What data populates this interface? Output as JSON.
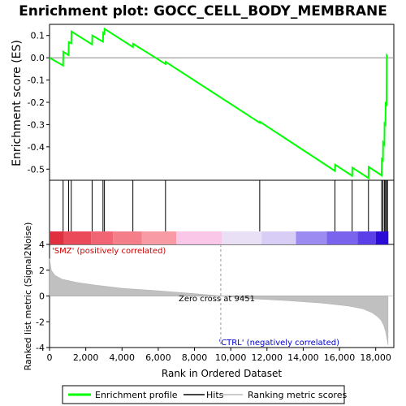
{
  "chart_data": {
    "type": "line",
    "title": "Enrichment plot: GOCC_CELL_BODY_MEMBRANE",
    "top_panel": {
      "ylabel": "Enrichment score (ES)",
      "ylim": [
        -0.55,
        0.15
      ],
      "yticks": [
        "0.1",
        "0.0",
        "-0.1",
        "-0.2",
        "-0.3",
        "-0.4",
        "-0.5"
      ],
      "ytick_values": [
        0.1,
        0.0,
        -0.1,
        -0.2,
        -0.3,
        -0.4,
        -0.5
      ],
      "series": [
        {
          "name": "Enrichment profile",
          "color": "#00ff00",
          "x": [
            0,
            750,
            760,
            1050,
            1060,
            1200,
            1210,
            2350,
            2360,
            2950,
            2960,
            3030,
            3040,
            4600,
            4610,
            6400,
            6410,
            11600,
            11610,
            15750,
            15760,
            16700,
            16710,
            17600,
            17610,
            18330,
            18340,
            18400,
            18410,
            18480,
            18490,
            18540,
            18550,
            18600,
            18610,
            18650
          ],
          "y": [
            0.0,
            -0.035,
            0.027,
            0.012,
            0.07,
            0.065,
            0.118,
            0.06,
            0.1,
            0.072,
            0.112,
            0.107,
            0.13,
            0.048,
            0.063,
            -0.028,
            -0.018,
            -0.292,
            -0.287,
            -0.508,
            -0.48,
            -0.53,
            -0.493,
            -0.54,
            -0.49,
            -0.528,
            -0.455,
            -0.46,
            -0.38,
            -0.39,
            -0.295,
            -0.3,
            -0.205,
            -0.21,
            0.01,
            0.005
          ]
        }
      ]
    },
    "hits": [
      750,
      1050,
      1200,
      2350,
      2950,
      3030,
      4600,
      6400,
      11600,
      15750,
      16700,
      17600,
      18330,
      18400,
      18480,
      18540,
      18600,
      18650
    ],
    "bar_segments": [
      {
        "from": 0,
        "to": 800,
        "color": "#e03040"
      },
      {
        "from": 800,
        "to": 2300,
        "color": "#ea4a5a"
      },
      {
        "from": 2300,
        "to": 3500,
        "color": "#f06474"
      },
      {
        "from": 3500,
        "to": 5100,
        "color": "#f57e8b"
      },
      {
        "from": 5100,
        "to": 7000,
        "color": "#f89ba5"
      },
      {
        "from": 7000,
        "to": 9500,
        "color": "#fbc7e8"
      },
      {
        "from": 9500,
        "to": 11700,
        "color": "#e9e0f6"
      },
      {
        "from": 11700,
        "to": 13600,
        "color": "#d7cdf5"
      },
      {
        "from": 13600,
        "to": 15300,
        "color": "#9c8cf2"
      },
      {
        "from": 15300,
        "to": 17000,
        "color": "#7a64ee"
      },
      {
        "from": 17000,
        "to": 18000,
        "color": "#5b40ea"
      },
      {
        "from": 18000,
        "to": 18700,
        "color": "#2b0bd6"
      }
    ],
    "bottom_panel": {
      "ylabel": "Ranked list metric (Signal2Noise)",
      "ylim": [
        -4,
        4
      ],
      "yticks": [
        "4",
        "2",
        "0",
        "-2",
        "-4"
      ],
      "ytick_values": [
        4,
        2,
        0,
        -2,
        -4
      ],
      "metric_curve_x": [
        0,
        100,
        300,
        700,
        1500,
        2500,
        4000,
        6000,
        8000,
        9451,
        11000,
        13000,
        15000,
        16500,
        17300,
        17800,
        18100,
        18300,
        18450,
        18550,
        18620,
        18680
      ],
      "metric_curve_y": [
        2.9,
        2.0,
        1.6,
        1.3,
        1.05,
        0.85,
        0.6,
        0.4,
        0.18,
        0.0,
        -0.2,
        -0.35,
        -0.55,
        -0.78,
        -1.0,
        -1.3,
        -1.6,
        -1.9,
        -2.3,
        -2.8,
        -3.3,
        -3.8
      ],
      "zero_cross_x": 9451,
      "zero_cross_label": "Zero cross at 9451",
      "pos_label": "'SMZ' (positively correlated)",
      "neg_label": "'CTRL' (negatively correlated)",
      "pos_color": "#cc0000",
      "neg_color": "#0000cc"
    },
    "xlabel": "Rank in Ordered Dataset",
    "xlim": [
      0,
      19000
    ],
    "xticks": [
      "0",
      "2,000",
      "4,000",
      "6,000",
      "8,000",
      "10,000",
      "12,000",
      "14,000",
      "16,000",
      "18,000"
    ],
    "xtick_values": [
      0,
      2000,
      4000,
      6000,
      8000,
      10000,
      12000,
      14000,
      16000,
      18000
    ],
    "legend": {
      "placement": "bottom",
      "items": [
        {
          "label": "Enrichment profile",
          "color": "#00ff00"
        },
        {
          "label": "Hits",
          "color": "#444444"
        },
        {
          "label": "Ranking metric scores",
          "color": "#cccccc"
        }
      ]
    }
  }
}
